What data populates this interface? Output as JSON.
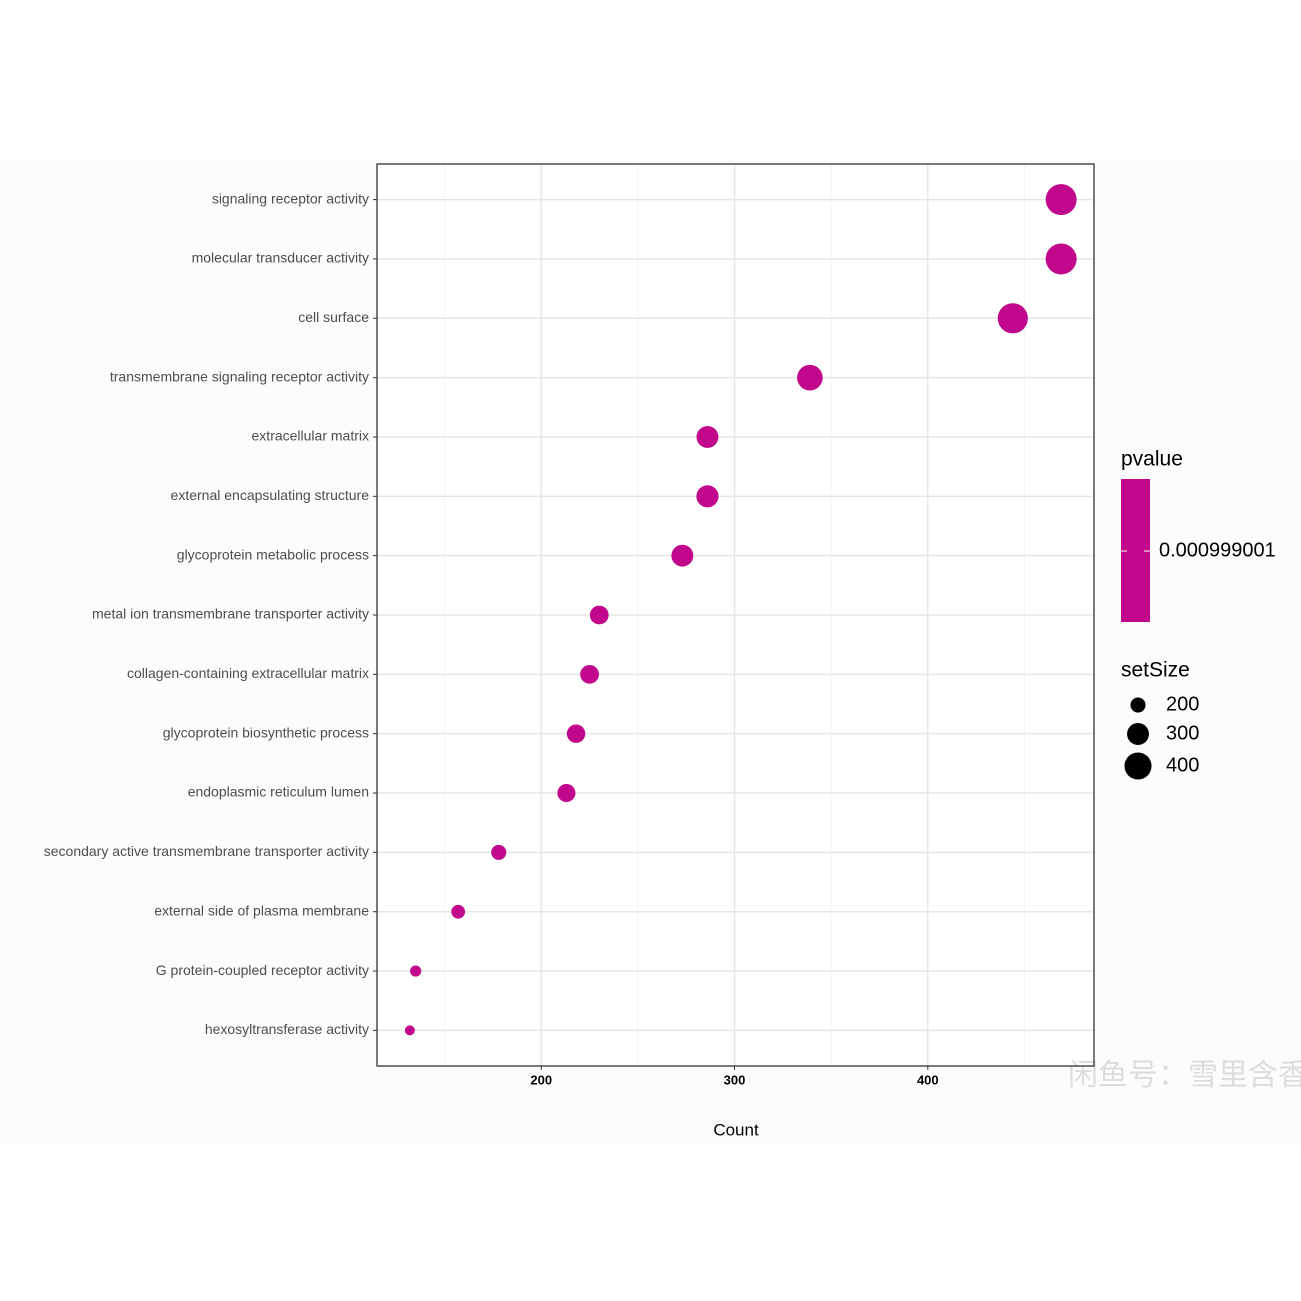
{
  "chart_data": {
    "type": "dot",
    "x_label": "Count",
    "categories": [
      "signaling receptor activity",
      "molecular transducer activity",
      "cell surface",
      "transmembrane signaling receptor activity",
      "extracellular matrix",
      "external encapsulating structure",
      "glycoprotein metabolic process",
      "metal ion transmembrane transporter activity",
      "collagen-containing extracellular matrix",
      "glycoprotein biosynthetic process",
      "endoplasmic reticulum lumen",
      "secondary active transmembrane transporter activity",
      "external side of plasma membrane",
      "G protein-coupled receptor activity",
      "hexosyltransferase activity"
    ],
    "series": [
      {
        "name": "Count",
        "color": "#c1088d",
        "values": [
          469,
          469,
          444,
          339,
          286,
          286,
          273,
          230,
          225,
          218,
          213,
          178,
          157,
          135,
          132
        ],
        "sizes": [
          490,
          490,
          470,
          370,
          300,
          305,
          300,
          250,
          250,
          245,
          240,
          200,
          185,
          160,
          150
        ]
      }
    ],
    "xlim": [
      115,
      486
    ],
    "xticks": [
      200,
      300,
      400
    ],
    "xminorticks": [
      150,
      250,
      350,
      450
    ],
    "grid": true,
    "color_legend": {
      "title": "pvalue",
      "ticks": [
        0.000999001
      ]
    },
    "size_legend": {
      "title": "setSize",
      "values": [
        200,
        300,
        400
      ]
    },
    "watermark": "闲鱼号：雪里含香"
  }
}
